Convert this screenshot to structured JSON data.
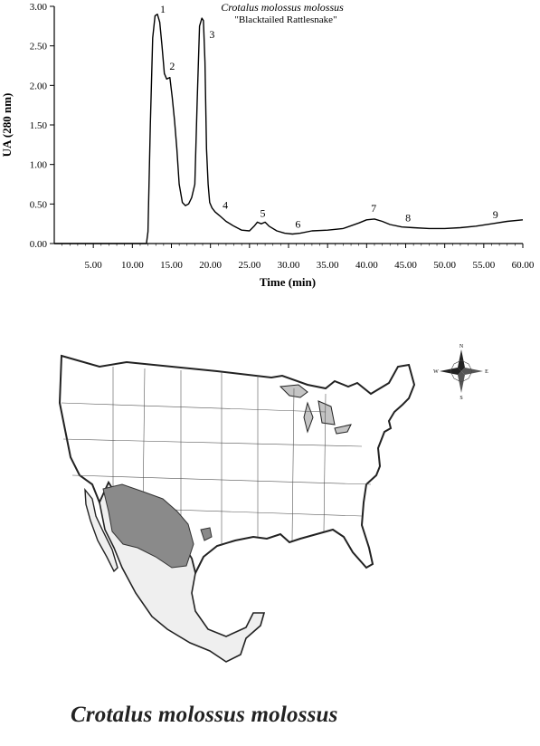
{
  "chart_data": {
    "type": "line",
    "title": "Crotalus molossus molossus",
    "subtitle": "\"Blacktailed Rattlesnake\"",
    "xlabel": "Time (min)",
    "ylabel": "UA (280 nm)",
    "xlim": [
      0,
      60
    ],
    "ylim": [
      0,
      3
    ],
    "xticks": [
      "5.00",
      "10.00",
      "15.00",
      "20.00",
      "25.00",
      "30.00",
      "35.00",
      "40.00",
      "45.00",
      "50.00",
      "55.00",
      "60.00"
    ],
    "yticks": [
      "0.00",
      "0.50",
      "1.00",
      "1.50",
      "2.00",
      "2.50",
      "3.00"
    ],
    "series": [
      {
        "x": [
          0,
          11.8,
          12.0,
          12.3,
          12.6,
          12.9,
          13.2,
          13.5,
          13.8,
          14.1,
          14.4,
          14.8,
          15.1,
          15.4,
          15.7,
          16.0,
          16.4,
          16.8,
          17.2,
          17.6,
          18.0,
          18.3,
          18.6,
          18.9,
          19.1,
          19.3,
          19.5,
          19.7,
          19.9,
          20.2,
          20.6,
          21.2,
          22.0,
          23.0,
          24.0,
          25.0,
          25.6,
          26.0,
          26.5,
          27.0,
          27.5,
          28.5,
          29.5,
          30.5,
          31.5,
          33.0,
          35.0,
          37.0,
          39.0,
          40.0,
          41.0,
          42.0,
          43.0,
          44.5,
          46.0,
          48.0,
          50.0,
          52.0,
          54.0,
          56.0,
          58.0,
          60.0
        ],
        "y": [
          0.0,
          0.0,
          0.15,
          1.5,
          2.6,
          2.88,
          2.9,
          2.8,
          2.5,
          2.15,
          2.08,
          2.1,
          1.85,
          1.55,
          1.2,
          0.75,
          0.52,
          0.48,
          0.5,
          0.58,
          0.75,
          1.8,
          2.75,
          2.85,
          2.82,
          2.3,
          1.2,
          0.75,
          0.52,
          0.45,
          0.4,
          0.35,
          0.28,
          0.22,
          0.17,
          0.16,
          0.22,
          0.27,
          0.25,
          0.27,
          0.22,
          0.16,
          0.13,
          0.12,
          0.13,
          0.16,
          0.17,
          0.19,
          0.26,
          0.3,
          0.31,
          0.28,
          0.24,
          0.21,
          0.2,
          0.19,
          0.19,
          0.2,
          0.22,
          0.25,
          0.28,
          0.3
        ]
      }
    ],
    "peak_labels": [
      {
        "label": "1",
        "x": 13.9,
        "y": 2.92
      },
      {
        "label": "2",
        "x": 15.1,
        "y": 2.2
      },
      {
        "label": "3",
        "x": 20.2,
        "y": 2.6
      },
      {
        "label": "4",
        "x": 21.9,
        "y": 0.44
      },
      {
        "label": "5",
        "x": 26.7,
        "y": 0.34
      },
      {
        "label": "6",
        "x": 31.2,
        "y": 0.2
      },
      {
        "label": "7",
        "x": 40.9,
        "y": 0.4
      },
      {
        "label": "8",
        "x": 45.3,
        "y": 0.28
      },
      {
        "label": "9",
        "x": 56.5,
        "y": 0.32
      }
    ]
  },
  "map": {
    "caption": "Crotalus molossus molossus",
    "compass": [
      "N",
      "W",
      "E",
      "S"
    ],
    "colors": {
      "land": "#ffffff",
      "mexico": "#efefef",
      "water": "#c4c4c4",
      "range": "#8a8a8a",
      "border": "#222222"
    }
  }
}
